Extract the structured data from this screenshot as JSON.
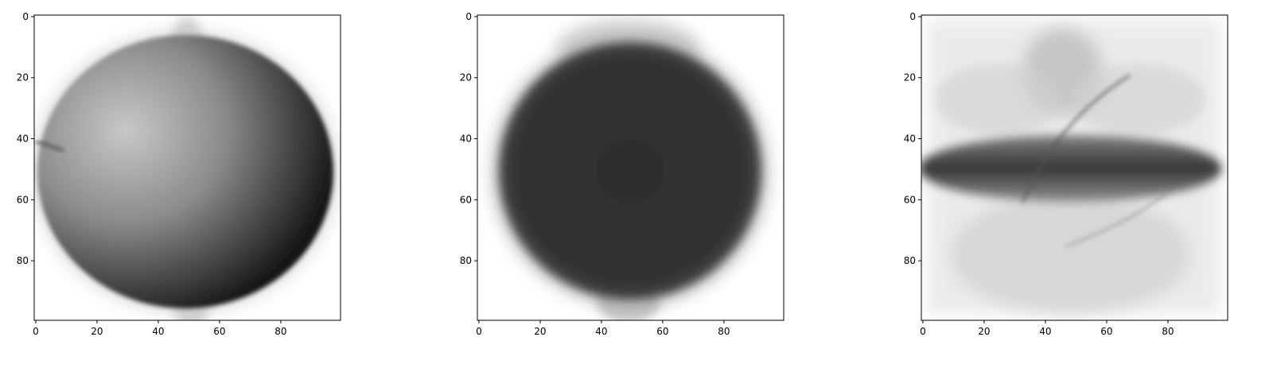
{
  "chart_data": [
    {
      "type": "heatmap",
      "title": "",
      "xlabel": "",
      "ylabel": "",
      "colormap": "gray_r",
      "xlim": [
        -0.5,
        99.5
      ],
      "ylim": [
        99.5,
        -0.5
      ],
      "xticks": [
        0,
        20,
        40,
        60,
        80
      ],
      "yticks": [
        0,
        20,
        40,
        60,
        80
      ],
      "content": "mean image, round object (apple-like) with shading darkest on right side"
    },
    {
      "type": "heatmap",
      "title": "",
      "xlabel": "",
      "ylabel": "",
      "colormap": "gray_r",
      "xlim": [
        -0.5,
        99.5
      ],
      "ylim": [
        99.5,
        -0.5
      ],
      "xticks": [
        0,
        20,
        40,
        60,
        80
      ],
      "yticks": [
        0,
        20,
        40,
        60,
        80
      ],
      "content": "mean image, dark round blob filling center"
    },
    {
      "type": "heatmap",
      "title": "",
      "xlabel": "",
      "ylabel": "",
      "colormap": "gray_r",
      "xlim": [
        -0.5,
        99.5
      ],
      "ylim": [
        99.5,
        -0.5
      ],
      "xticks": [
        0,
        20,
        40,
        60,
        80
      ],
      "yticks": [
        0,
        20,
        40,
        60,
        80
      ],
      "content": "mean image, light overlapping shapes with dark horizontal band around rows 45-60"
    }
  ]
}
